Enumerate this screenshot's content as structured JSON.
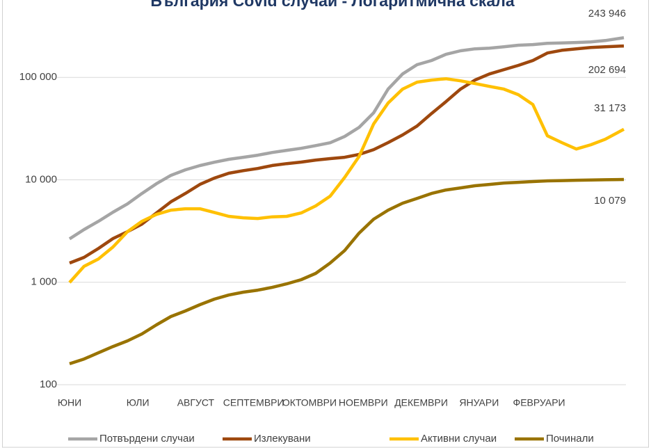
{
  "chart_data": {
    "type": "line",
    "title": "България Covid случаи - Логаритмична скала",
    "yscale": "log",
    "ylim": [
      100,
      1000000
    ],
    "yticks": [
      100,
      {
        "value": 1000,
        "label": "1 000"
      },
      {
        "value": 10000,
        "label": "10 000"
      },
      {
        "value": 100000,
        "label": "100 000"
      }
    ],
    "grid": true,
    "xlim": [
      0,
      268
    ],
    "xticks": [
      {
        "value": 0,
        "label": "ЮНИ"
      },
      {
        "value": 33,
        "label": "ЮЛИ"
      },
      {
        "value": 61,
        "label": "АВГУСТ"
      },
      {
        "value": 89,
        "label": "СЕПТЕМВРИ"
      },
      {
        "value": 116,
        "label": "ОКТОМВРИ"
      },
      {
        "value": 142,
        "label": "НОЕМВРИ"
      },
      {
        "value": 170,
        "label": "ДЕКЕМВРИ"
      },
      {
        "value": 198,
        "label": "ЯНУАРИ"
      },
      {
        "value": 227,
        "label": "ФЕВРУАРИ"
      }
    ],
    "legend": "bottom",
    "x": [
      0,
      7,
      14,
      21,
      28,
      35,
      42,
      49,
      56,
      63,
      70,
      77,
      84,
      91,
      98,
      105,
      112,
      119,
      126,
      133,
      140,
      147,
      154,
      161,
      168,
      175,
      182,
      189,
      196,
      203,
      210,
      217,
      224,
      231,
      238,
      245,
      252,
      259,
      268
    ],
    "series": [
      {
        "name": "Потвърдени случаи",
        "color": "#a5a5a5",
        "values": [
          2650,
          3270,
          3940,
          4830,
          5820,
          7360,
          9160,
          11050,
          12530,
          13770,
          14860,
          15850,
          16600,
          17400,
          18500,
          19400,
          20300,
          21600,
          23000,
          26500,
          32500,
          45100,
          76800,
          108000,
          133000,
          146000,
          168000,
          182000,
          190000,
          193000,
          199000,
          206000,
          209000,
          215000,
          217000,
          219000,
          222000,
          229000,
          243946
        ],
        "value_labels": [
          null,
          null,
          null,
          null,
          null,
          null,
          null,
          null,
          null,
          null,
          null,
          null,
          null,
          null,
          null,
          null,
          null,
          null,
          null,
          null,
          null,
          null,
          null,
          null,
          null,
          null,
          null,
          null,
          null,
          null,
          null,
          null,
          null,
          null,
          null,
          null,
          null,
          null,
          "243 946"
        ]
      },
      {
        "name": "Излекувани",
        "color": "#9e480e",
        "values": [
          1540,
          1750,
          2140,
          2670,
          3120,
          3700,
          4750,
          6100,
          7360,
          9020,
          10400,
          11600,
          12300,
          12900,
          13800,
          14400,
          14900,
          15600,
          16100,
          16600,
          17700,
          19700,
          23100,
          27400,
          33500,
          44400,
          58000,
          76800,
          94100,
          108000,
          119000,
          131000,
          146000,
          173000,
          184000,
          190000,
          196000,
          199000,
          202694
        ],
        "value_labels": [
          null,
          null,
          null,
          null,
          null,
          null,
          null,
          null,
          null,
          null,
          null,
          null,
          null,
          null,
          null,
          null,
          null,
          null,
          null,
          null,
          null,
          null,
          null,
          null,
          null,
          null,
          null,
          null,
          null,
          null,
          null,
          null,
          null,
          null,
          null,
          null,
          null,
          null,
          "202 694"
        ]
      },
      {
        "name": "Активни случаи",
        "color": "#ffc000",
        "values": [
          995,
          1430,
          1690,
          2210,
          3120,
          3940,
          4600,
          5060,
          5220,
          5220,
          4800,
          4400,
          4260,
          4190,
          4350,
          4400,
          4750,
          5560,
          6920,
          10550,
          16900,
          35100,
          56200,
          76800,
          89800,
          94100,
          97000,
          92600,
          87100,
          81700,
          76800,
          67800,
          54400,
          26900,
          23100,
          20000,
          22000,
          24900,
          31173
        ],
        "value_labels": [
          null,
          null,
          null,
          null,
          null,
          null,
          null,
          null,
          null,
          null,
          null,
          null,
          null,
          null,
          null,
          null,
          null,
          null,
          null,
          null,
          null,
          null,
          null,
          null,
          null,
          null,
          null,
          null,
          null,
          null,
          null,
          null,
          null,
          null,
          null,
          null,
          null,
          null,
          "31 173"
        ]
      },
      {
        "name": "Починали",
        "color": "#997300",
        "values": [
          160,
          178,
          205,
          236,
          268,
          313,
          384,
          463,
          525,
          604,
          684,
          751,
          800,
          838,
          892,
          965,
          1060,
          1220,
          1540,
          2040,
          3020,
          4130,
          5060,
          5910,
          6590,
          7360,
          7960,
          8340,
          8750,
          9020,
          9310,
          9460,
          9610,
          9770,
          9830,
          9900,
          9960,
          10020,
          10079
        ],
        "value_labels": [
          null,
          null,
          null,
          null,
          null,
          null,
          null,
          null,
          null,
          null,
          null,
          null,
          null,
          null,
          null,
          null,
          null,
          null,
          null,
          null,
          null,
          null,
          null,
          null,
          null,
          null,
          null,
          null,
          null,
          null,
          null,
          null,
          null,
          null,
          null,
          null,
          null,
          null,
          "10 079"
        ]
      }
    ]
  }
}
